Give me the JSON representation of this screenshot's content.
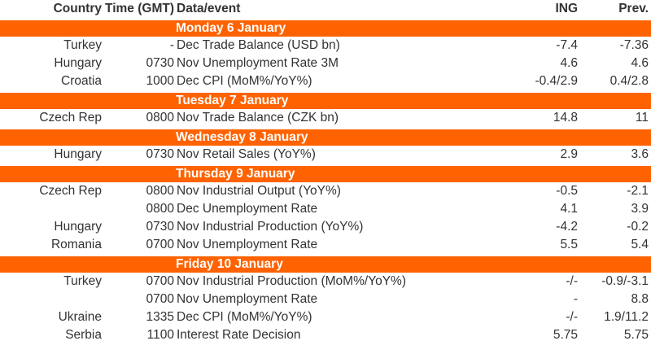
{
  "header": {
    "country": "Country",
    "time": "Time (GMT)",
    "event": "Data/event",
    "ing": "ING",
    "prev": "Prev."
  },
  "days": [
    {
      "label": "Monday 6 January",
      "rows": [
        {
          "country": "Turkey",
          "time": "-",
          "event": "Dec Trade Balance (USD bn)",
          "ing": "-7.4",
          "prev": "-7.36"
        },
        {
          "country": "Hungary",
          "time": "0730",
          "event": "Nov Unemployment Rate 3M",
          "ing": "4.6",
          "prev": "4.6"
        },
        {
          "country": "Croatia",
          "time": "1000",
          "event": "Dec CPI (MoM%/YoY%)",
          "ing": "-0.4/2.9",
          "prev": "0.4/2.8"
        }
      ]
    },
    {
      "label": "Tuesday 7 January",
      "rows": [
        {
          "country": "Czech Rep",
          "time": "0800",
          "event": "Nov Trade Balance (CZK bn)",
          "ing": "14.8",
          "prev": "11"
        }
      ]
    },
    {
      "label": "Wednesday 8 January",
      "rows": [
        {
          "country": "Hungary",
          "time": "0730",
          "event": "Nov Retail Sales (YoY%)",
          "ing": "2.9",
          "prev": "3.6"
        }
      ]
    },
    {
      "label": "Thursday 9 January",
      "rows": [
        {
          "country": "Czech Rep",
          "time": "0800",
          "event": "Nov Industrial Output (YoY%)",
          "ing": "-0.5",
          "prev": "-2.1"
        },
        {
          "country": "",
          "time": "0800",
          "event": "Dec Unemployment Rate",
          "ing": "4.1",
          "prev": "3.9"
        },
        {
          "country": "Hungary",
          "time": "0730",
          "event": "Nov Industrial Production (YoY%)",
          "ing": "-4.2",
          "prev": "-0.2"
        },
        {
          "country": "Romania",
          "time": "0700",
          "event": "Nov Unemployment Rate",
          "ing": "5.5",
          "prev": "5.4"
        }
      ]
    },
    {
      "label": "Friday 10 January",
      "rows": [
        {
          "country": "Turkey",
          "time": "0700",
          "event": "Nov Industrial Production (MoM%/YoY%)",
          "ing": "-/-",
          "prev": "-0.9/-3.1"
        },
        {
          "country": "",
          "time": "0700",
          "event": "Nov Unemployment Rate",
          "ing": "-",
          "prev": "8.8"
        },
        {
          "country": "Ukraine",
          "time": "1335",
          "event": "Dec CPI (MoM%/YoY%)",
          "ing": "-/-",
          "prev": "1.9/11.2"
        },
        {
          "country": "Serbia",
          "time": "1100",
          "event": "Interest Rate Decision",
          "ing": "5.75",
          "prev": "5.75"
        }
      ]
    }
  ]
}
